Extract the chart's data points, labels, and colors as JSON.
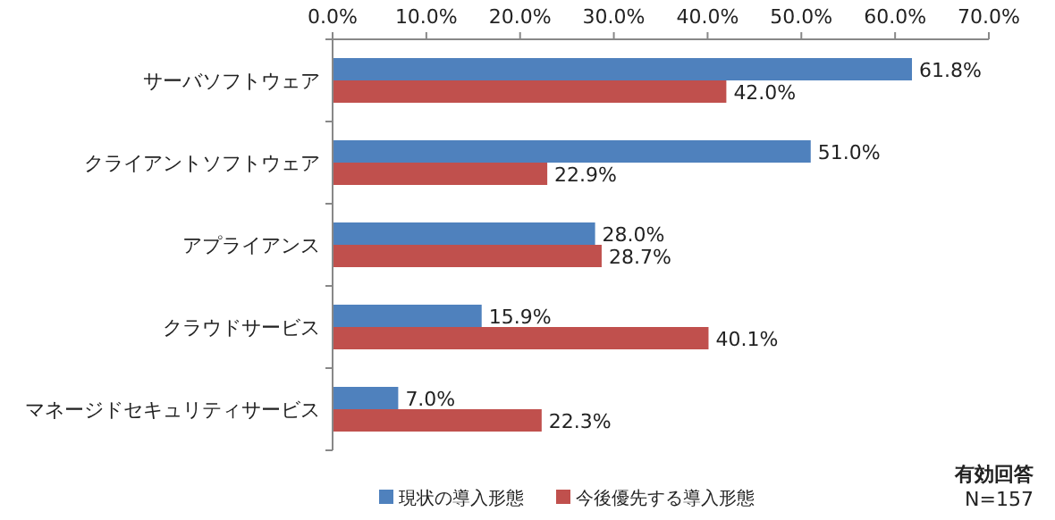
{
  "chart_data": {
    "type": "bar",
    "orientation": "horizontal",
    "categories": [
      "サーバソフトウェア",
      "クライアントソフトウェア",
      "アプライアンス",
      "クラウドサービス",
      "マネージドセキュリティサービス"
    ],
    "series": [
      {
        "name": "現状の導入形態",
        "color": "#4f81bd",
        "values": [
          61.8,
          51.0,
          28.0,
          15.9,
          7.0
        ],
        "value_labels": [
          "61.8%",
          "51.0%",
          "28.0%",
          "15.9%",
          "7.0%"
        ]
      },
      {
        "name": "今後優先する導入形態",
        "color": "#c0504d",
        "values": [
          42.0,
          22.9,
          28.7,
          40.1,
          22.3
        ],
        "value_labels": [
          "42.0%",
          "22.9%",
          "28.7%",
          "40.1%",
          "22.3%"
        ]
      }
    ],
    "xlim": [
      0,
      70
    ],
    "xticks": [
      {
        "value": 0,
        "label": "0.0%"
      },
      {
        "value": 10,
        "label": "10.0%"
      },
      {
        "value": 20,
        "label": "20.0%"
      },
      {
        "value": 30,
        "label": "30.0%"
      },
      {
        "value": 40,
        "label": "40.0%"
      },
      {
        "value": 50,
        "label": "50.0%"
      },
      {
        "value": 60,
        "label": "60.0%"
      },
      {
        "value": 70,
        "label": "70.0%"
      }
    ],
    "grid": false,
    "legend": "bottom",
    "annotations": [
      "有効回答",
      "N=157"
    ]
  }
}
